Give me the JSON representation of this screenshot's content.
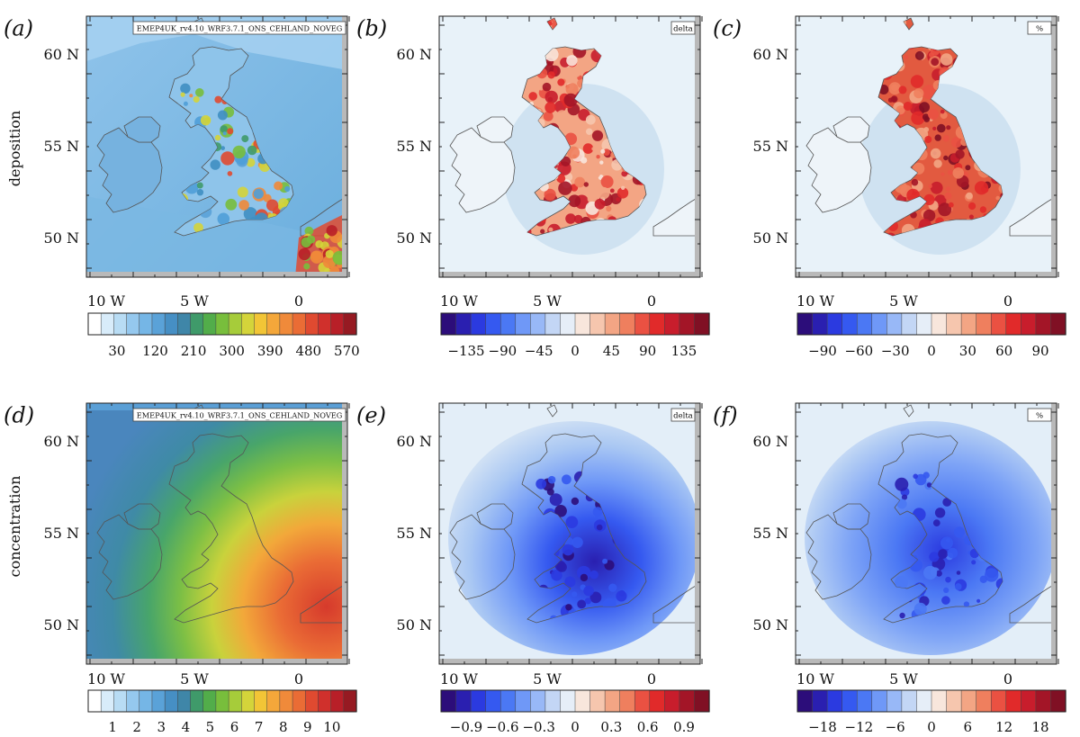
{
  "row_labels": [
    "deposition",
    "concentration"
  ],
  "colors": {
    "land_grey": "#b9b9b9",
    "coast": "#555555",
    "seq_scale": [
      "#ffffff",
      "#d8ecfa",
      "#b8dcf4",
      "#95c8ee",
      "#75b6e6",
      "#5aa2d8",
      "#468fc4",
      "#3f86a8",
      "#3f9a6a",
      "#52ad4a",
      "#78be3c",
      "#a6cc3a",
      "#d4d43a",
      "#f2c536",
      "#f4a73a",
      "#f08a3a",
      "#ea6c35",
      "#e04a30",
      "#d0302c",
      "#b81f28",
      "#961a22"
    ],
    "div_scale": [
      "#2c0d7a",
      "#2a1fb0",
      "#2b3ae0",
      "#3559f0",
      "#4b78f4",
      "#6f98f7",
      "#98b8f7",
      "#c3d6f5",
      "#e6eef8",
      "#f8e6dc",
      "#f6c6ae",
      "#f3a584",
      "#ef7f5e",
      "#ea5142",
      "#e12a2a",
      "#c81d2c",
      "#a31527",
      "#801024"
    ]
  },
  "panels": [
    {
      "letter": "(a)",
      "map_style": "seq_dep",
      "legend_style": "seq",
      "box_text": "EMEP4UK_rv4.10_WRF3.7.1_ONS_CEHLAND_NOVEG",
      "lat_labels": [
        "60 N",
        "55 N",
        "50 N"
      ],
      "lon_labels": [
        "10 W",
        "5 W",
        "0"
      ],
      "cbar_labels": [
        "30",
        "120",
        "210",
        "300",
        "390",
        "480",
        "570"
      ]
    },
    {
      "letter": "(b)",
      "map_style": "div_pos",
      "legend_style": "div",
      "box_text": "delta",
      "lat_labels": [
        "60 N",
        "55 N",
        "50 N"
      ],
      "lon_labels": [
        "10 W",
        "5 W",
        "0"
      ],
      "cbar_labels": [
        "−135",
        "−90",
        "−45",
        "0",
        "45",
        "90",
        "135"
      ]
    },
    {
      "letter": "(c)",
      "map_style": "div_pos_strong",
      "legend_style": "div",
      "box_text": "%",
      "lat_labels": [
        "60 N",
        "55 N",
        "50 N"
      ],
      "lon_labels": [
        "10 W",
        "5 W",
        "0"
      ],
      "cbar_labels": [
        "−90",
        "−60",
        "−30",
        "0",
        "30",
        "60",
        "90"
      ]
    },
    {
      "letter": "(d)",
      "map_style": "seq_conc",
      "legend_style": "seq",
      "box_text": "EMEP4UK_rv4.10_WRF3.7.1_ONS_CEHLAND_NOVEG",
      "lat_labels": [
        "60 N",
        "55 N",
        "50 N"
      ],
      "lon_labels": [
        "10 W",
        "5 W",
        "0"
      ],
      "cbar_labels": [
        "1",
        "2",
        "3",
        "4",
        "5",
        "6",
        "7",
        "8",
        "9",
        "10"
      ]
    },
    {
      "letter": "(e)",
      "map_style": "div_neg",
      "legend_style": "div",
      "box_text": "delta",
      "lat_labels": [
        "60 N",
        "55 N",
        "50 N"
      ],
      "lon_labels": [
        "10 W",
        "5 W",
        "0"
      ],
      "cbar_labels": [
        "−0.9",
        "−0.6",
        "−0.3",
        "0",
        "0.3",
        "0.6",
        "0.9"
      ]
    },
    {
      "letter": "(f)",
      "map_style": "div_neg_mid",
      "legend_style": "div",
      "box_text": "%",
      "lat_labels": [
        "60 N",
        "55 N",
        "50 N"
      ],
      "lon_labels": [
        "10 W",
        "5 W",
        "0"
      ],
      "cbar_labels": [
        "−18",
        "−12",
        "−6",
        "0",
        "6",
        "12",
        "18"
      ]
    }
  ]
}
